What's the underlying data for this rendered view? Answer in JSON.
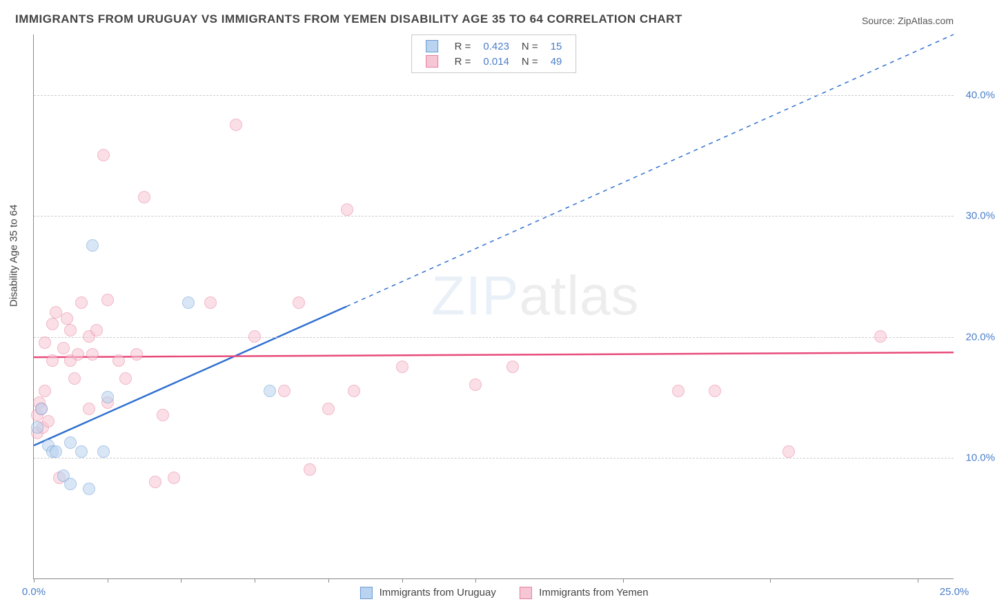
{
  "title": "IMMIGRANTS FROM URUGUAY VS IMMIGRANTS FROM YEMEN DISABILITY AGE 35 TO 64 CORRELATION CHART",
  "source": "Source: ZipAtlas.com",
  "ylabel": "Disability Age 35 to 64",
  "watermark_prefix": "ZIP",
  "watermark_suffix": "atlas",
  "chart": {
    "type": "scatter",
    "xlim": [
      0,
      25
    ],
    "ylim": [
      0,
      45
    ],
    "x_ticks": [
      0,
      2,
      4,
      6,
      8,
      10,
      12,
      16,
      20,
      24
    ],
    "x_tick_labels": {
      "0": "0.0%",
      "25": "25.0%"
    },
    "y_gridlines": [
      10,
      20,
      30,
      40
    ],
    "y_tick_labels": {
      "10": "10.0%",
      "20": "20.0%",
      "30": "30.0%",
      "40": "40.0%"
    },
    "background_color": "#ffffff",
    "grid_color": "#cccccc",
    "axis_color": "#888888",
    "label_fontsize": 15,
    "title_fontsize": 17,
    "tick_label_color": "#4a7ec9",
    "marker_radius": 9,
    "marker_opacity": 0.55,
    "series": [
      {
        "name": "Immigrants from Uruguay",
        "key": "uruguay",
        "fill_color": "#b9d3f0",
        "stroke_color": "#6b9bd1",
        "line_color": "#2e6fd1",
        "r_label": "R =",
        "r_value": "0.423",
        "n_label": "N =",
        "n_value": "15",
        "regression": {
          "x1": 0,
          "y1": 11,
          "x2": 8.5,
          "y2": 22.5
        },
        "extrapolation": {
          "x1": 8.5,
          "y1": 22.5,
          "x2": 25,
          "y2": 45
        },
        "points": [
          [
            0.1,
            12.5
          ],
          [
            0.2,
            14.0
          ],
          [
            0.4,
            11.0
          ],
          [
            0.5,
            10.5
          ],
          [
            0.6,
            10.5
          ],
          [
            0.8,
            8.5
          ],
          [
            1.0,
            11.2
          ],
          [
            1.0,
            7.8
          ],
          [
            1.3,
            10.5
          ],
          [
            1.5,
            7.4
          ],
          [
            1.6,
            27.5
          ],
          [
            2.0,
            15.0
          ],
          [
            1.9,
            10.5
          ],
          [
            4.2,
            22.8
          ],
          [
            6.4,
            15.5
          ]
        ]
      },
      {
        "name": "Immigrants from Yemen",
        "key": "yemen",
        "fill_color": "#f6c6d4",
        "stroke_color": "#e97d9e",
        "line_color": "#e84a7a",
        "r_label": "R =",
        "r_value": "0.014",
        "n_label": "N =",
        "n_value": "49",
        "regression": {
          "x1": 0,
          "y1": 18.3,
          "x2": 25,
          "y2": 18.7
        },
        "points": [
          [
            0.1,
            12.0
          ],
          [
            0.1,
            13.5
          ],
          [
            0.15,
            14.5
          ],
          [
            0.2,
            14.0
          ],
          [
            0.25,
            12.5
          ],
          [
            0.3,
            15.5
          ],
          [
            0.3,
            19.5
          ],
          [
            0.4,
            13.0
          ],
          [
            0.5,
            21.0
          ],
          [
            0.5,
            18.0
          ],
          [
            0.6,
            22.0
          ],
          [
            0.7,
            8.3
          ],
          [
            0.8,
            19.0
          ],
          [
            0.9,
            21.5
          ],
          [
            1.0,
            18.0
          ],
          [
            1.0,
            20.5
          ],
          [
            1.1,
            16.5
          ],
          [
            1.2,
            18.5
          ],
          [
            1.3,
            22.8
          ],
          [
            1.5,
            20.0
          ],
          [
            1.5,
            14.0
          ],
          [
            1.6,
            18.5
          ],
          [
            1.7,
            20.5
          ],
          [
            1.9,
            35.0
          ],
          [
            2.0,
            23.0
          ],
          [
            2.0,
            14.5
          ],
          [
            2.3,
            18.0
          ],
          [
            2.5,
            16.5
          ],
          [
            2.8,
            18.5
          ],
          [
            3.0,
            31.5
          ],
          [
            3.3,
            8.0
          ],
          [
            3.5,
            13.5
          ],
          [
            3.8,
            8.3
          ],
          [
            4.8,
            22.8
          ],
          [
            5.5,
            37.5
          ],
          [
            6.0,
            20.0
          ],
          [
            6.8,
            15.5
          ],
          [
            7.2,
            22.8
          ],
          [
            7.5,
            9.0
          ],
          [
            8.0,
            14.0
          ],
          [
            8.5,
            30.5
          ],
          [
            8.7,
            15.5
          ],
          [
            10.0,
            17.5
          ],
          [
            12.0,
            16.0
          ],
          [
            13.0,
            17.5
          ],
          [
            17.5,
            15.5
          ],
          [
            18.5,
            15.5
          ],
          [
            20.5,
            10.5
          ],
          [
            23.0,
            20.0
          ]
        ]
      }
    ]
  },
  "legend_bottom": {
    "items": [
      {
        "label": "Immigrants from Uruguay",
        "fill": "#b9d3f0",
        "stroke": "#6b9bd1"
      },
      {
        "label": "Immigrants from Yemen",
        "fill": "#f6c6d4",
        "stroke": "#e97d9e"
      }
    ]
  }
}
